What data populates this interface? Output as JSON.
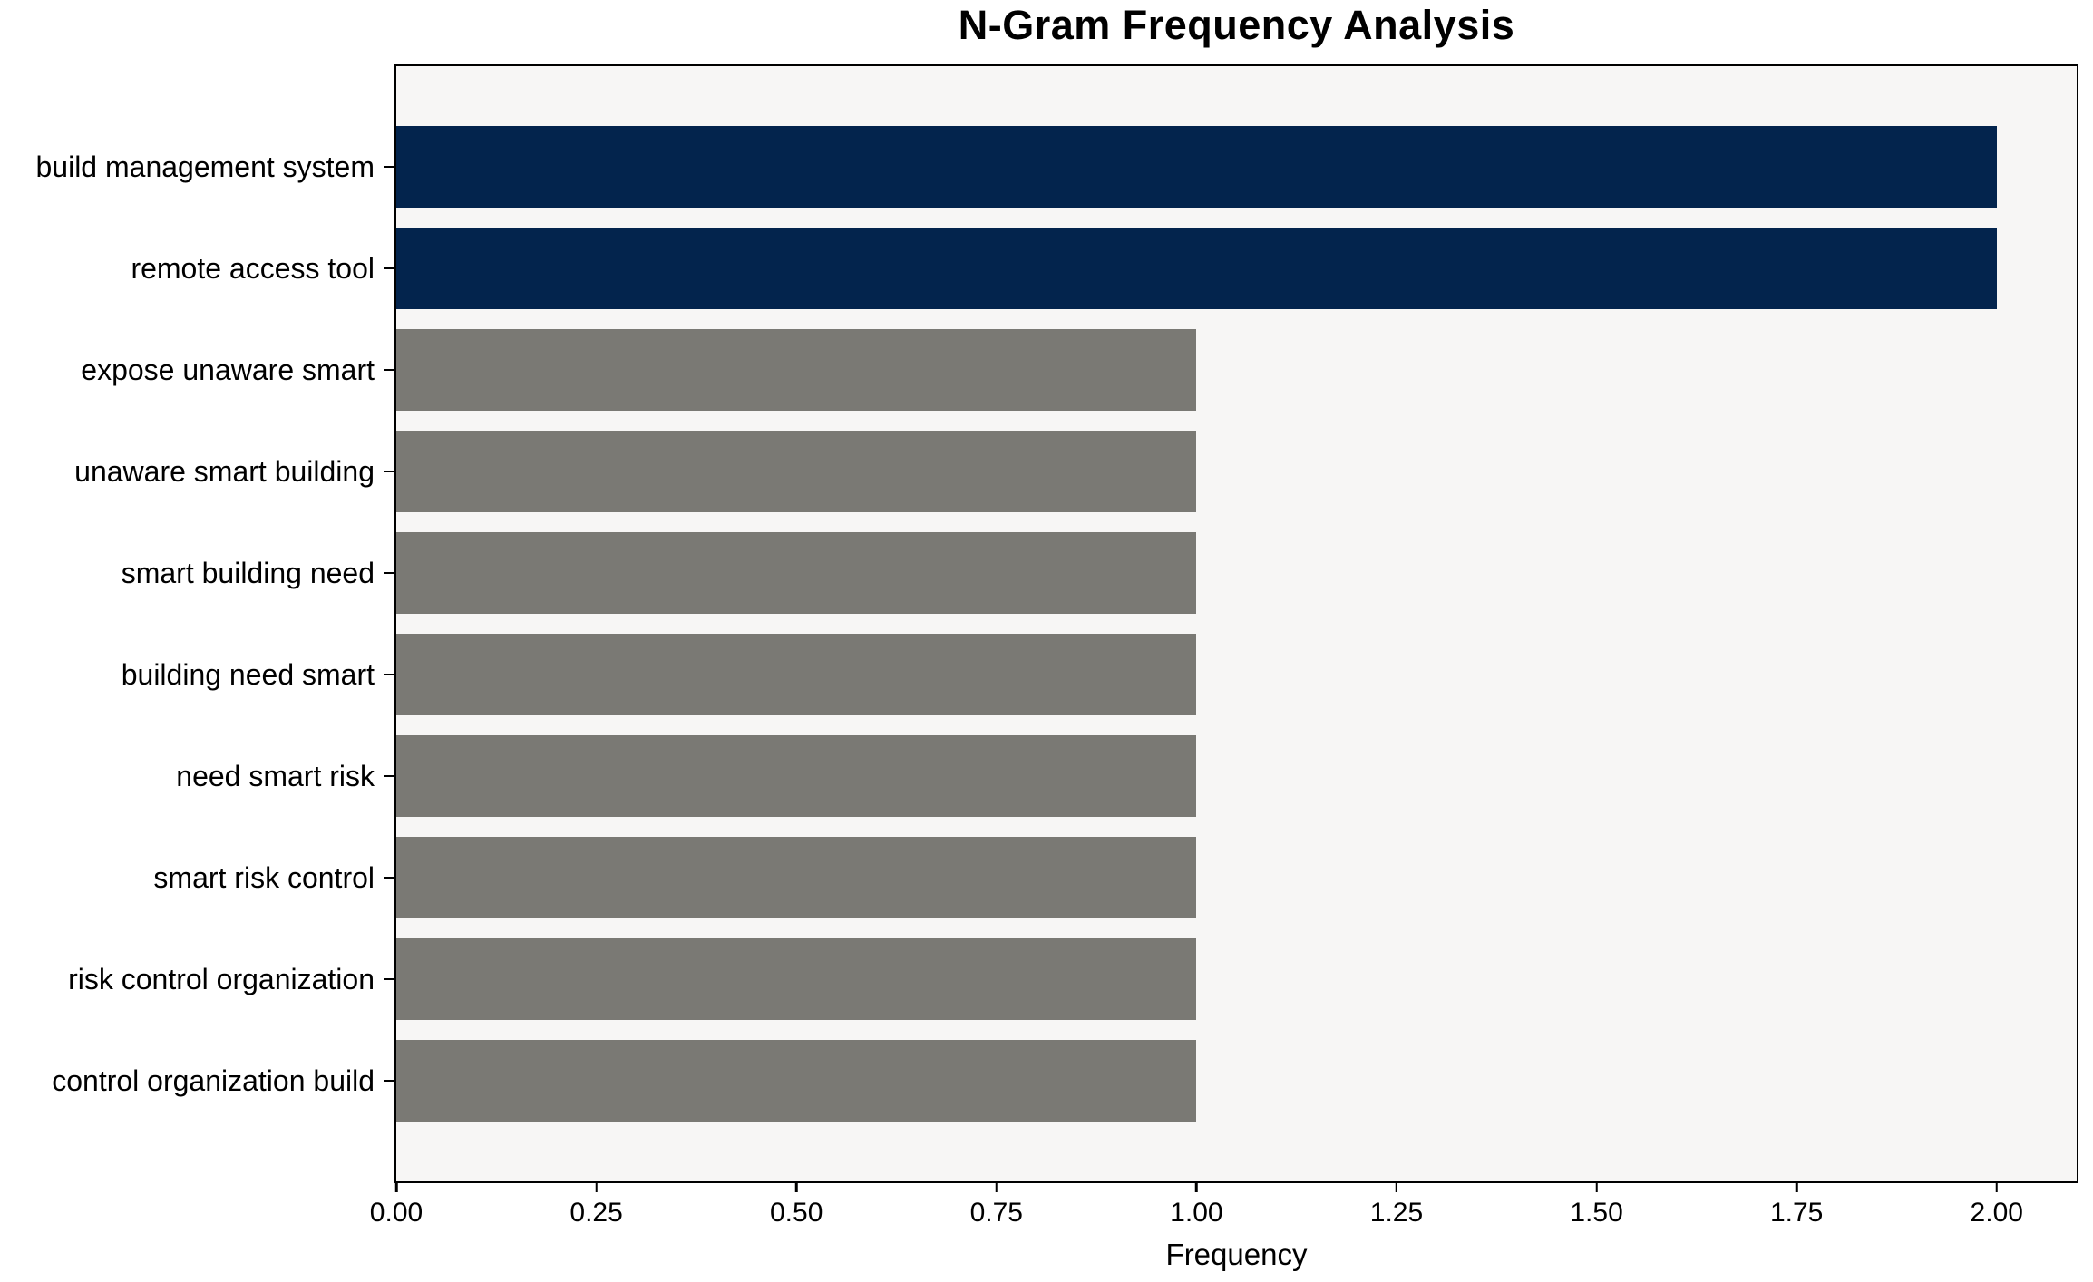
{
  "chart_data": {
    "type": "bar",
    "orientation": "horizontal",
    "title": "N-Gram Frequency Analysis",
    "xlabel": "Frequency",
    "ylabel": "",
    "categories": [
      "build management system",
      "remote access tool",
      "expose unaware smart",
      "unaware smart building",
      "smart building need",
      "building need smart",
      "need smart risk",
      "smart risk control",
      "risk control organization",
      "control organization build"
    ],
    "values": [
      2,
      2,
      1,
      1,
      1,
      1,
      1,
      1,
      1,
      1
    ],
    "bar_colors": [
      "#03244d",
      "#03244d",
      "#7a7974",
      "#7a7974",
      "#7a7974",
      "#7a7974",
      "#7a7974",
      "#7a7974",
      "#7a7974",
      "#7a7974"
    ],
    "xlim": [
      0,
      2.1
    ],
    "xticks": [
      0,
      0.25,
      0.5,
      0.75,
      1.0,
      1.25,
      1.5,
      1.75,
      2.0
    ],
    "xtick_labels": [
      "0.00",
      "0.25",
      "0.50",
      "0.75",
      "1.00",
      "1.25",
      "1.50",
      "1.75",
      "2.00"
    ],
    "grid": false,
    "legend": false,
    "bar_height_frac": 0.8,
    "colors": {
      "highlight": "#03244d",
      "default": "#7a7974",
      "plot_background": "#f7f6f5",
      "figure_background": "#ffffff",
      "spine": "#000000",
      "text": "#000000"
    }
  }
}
